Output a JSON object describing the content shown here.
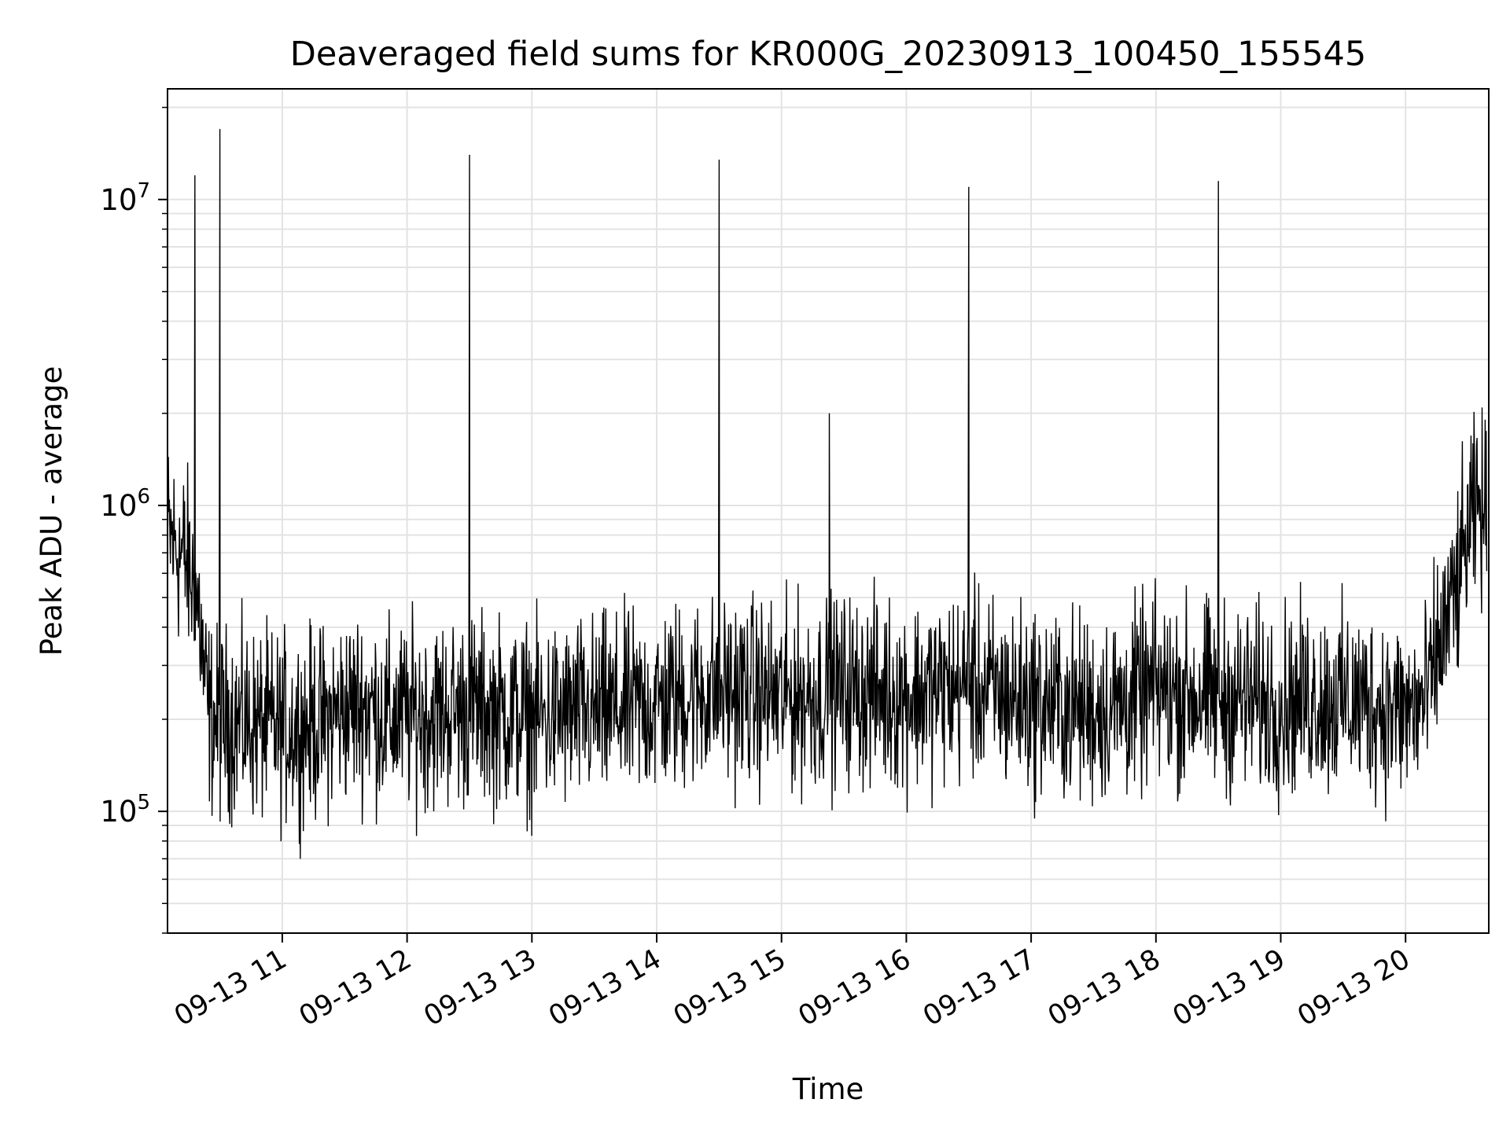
{
  "chart_data": {
    "type": "line",
    "title": "Deaveraged field sums for KR000G_20230913_100450_155545",
    "xlabel": "Time",
    "ylabel": "Peak ADU - average",
    "yscale": "log",
    "ylim": [
      40000,
      23000000
    ],
    "xlim": [
      "2023-09-13 10:04:50",
      "2023-09-13 20:40:00"
    ],
    "grid": true,
    "line_color": "#000000",
    "grid_color": "#e3e3e3",
    "x_tick_labels": [
      "09-13 11",
      "09-13 12",
      "09-13 13",
      "09-13 14",
      "09-13 15",
      "09-13 16",
      "09-13 17",
      "09-13 18",
      "09-13 19",
      "09-13 20"
    ],
    "x_ticks": [
      "2023-09-13 11:00",
      "2023-09-13 12:00",
      "2023-09-13 13:00",
      "2023-09-13 14:00",
      "2023-09-13 15:00",
      "2023-09-13 16:00",
      "2023-09-13 17:00",
      "2023-09-13 18:00",
      "2023-09-13 19:00",
      "2023-09-13 20:00"
    ],
    "y_ticks": [
      {
        "value": 100000,
        "base": "10",
        "exp": "5"
      },
      {
        "value": 1000000,
        "base": "10",
        "exp": "6"
      },
      {
        "value": 10000000,
        "base": "10",
        "exp": "7"
      }
    ],
    "series": [
      {
        "x": [
          "2023-09-13 10:05",
          "2023-09-13 10:08",
          "2023-09-13 10:11",
          "2023-09-13 10:14",
          "2023-09-13 10:17",
          "2023-09-13 10:20",
          "2023-09-13 10:22",
          "2023-09-13 10:24",
          "2023-09-13 10:26",
          "2023-09-13 10:30",
          "2023-09-13 10:34",
          "2023-09-13 10:40",
          "2023-09-13 10:50",
          "2023-09-13 11:00",
          "2023-09-13 11:10",
          "2023-09-13 11:20",
          "2023-09-13 11:30",
          "2023-09-13 11:40",
          "2023-09-13 11:50",
          "2023-09-13 12:00",
          "2023-09-13 12:15",
          "2023-09-13 12:30",
          "2023-09-13 12:45",
          "2023-09-13 13:00",
          "2023-09-13 13:15",
          "2023-09-13 13:30",
          "2023-09-13 13:45",
          "2023-09-13 14:00",
          "2023-09-13 14:15",
          "2023-09-13 14:30",
          "2023-09-13 14:45",
          "2023-09-13 15:00",
          "2023-09-13 15:15",
          "2023-09-13 15:30",
          "2023-09-13 15:45",
          "2023-09-13 16:00",
          "2023-09-13 16:15",
          "2023-09-13 16:30",
          "2023-09-13 16:45",
          "2023-09-13 17:00",
          "2023-09-13 17:15",
          "2023-09-13 17:30",
          "2023-09-13 17:45",
          "2023-09-13 18:00",
          "2023-09-13 18:15",
          "2023-09-13 18:30",
          "2023-09-13 18:45",
          "2023-09-13 19:00",
          "2023-09-13 19:15",
          "2023-09-13 19:30",
          "2023-09-13 19:45",
          "2023-09-13 20:00",
          "2023-09-13 20:10",
          "2023-09-13 20:15",
          "2023-09-13 20:20",
          "2023-09-13 20:25",
          "2023-09-13 20:30",
          "2023-09-13 20:35",
          "2023-09-13 20:39"
        ],
        "y": [
          800000,
          750000,
          700000,
          650000,
          550000,
          450000,
          300000,
          220000,
          200000,
          190000,
          200000,
          195000,
          190000,
          185000,
          190000,
          195000,
          215000,
          225000,
          200000,
          205000,
          210000,
          215000,
          210000,
          200000,
          205000,
          210000,
          215000,
          225000,
          240000,
          250000,
          245000,
          235000,
          240000,
          250000,
          245000,
          240000,
          250000,
          255000,
          240000,
          230000,
          220000,
          215000,
          225000,
          250000,
          240000,
          235000,
          230000,
          225000,
          235000,
          230000,
          225000,
          210000,
          230000,
          320000,
          420000,
          550000,
          800000,
          1000000,
          900000
        ],
        "spikes": [
          {
            "x": "2023-09-13 10:18",
            "y": 12000000
          },
          {
            "x": "2023-09-13 10:30",
            "y": 17000000
          },
          {
            "x": "2023-09-13 12:30",
            "y": 14000000
          },
          {
            "x": "2023-09-13 14:30",
            "y": 13500000
          },
          {
            "x": "2023-09-13 15:23",
            "y": 2000000
          },
          {
            "x": "2023-09-13 16:30",
            "y": 11000000
          },
          {
            "x": "2023-09-13 18:30",
            "y": 11500000
          }
        ],
        "noise_range": [
          60000,
          600000
        ]
      }
    ]
  }
}
